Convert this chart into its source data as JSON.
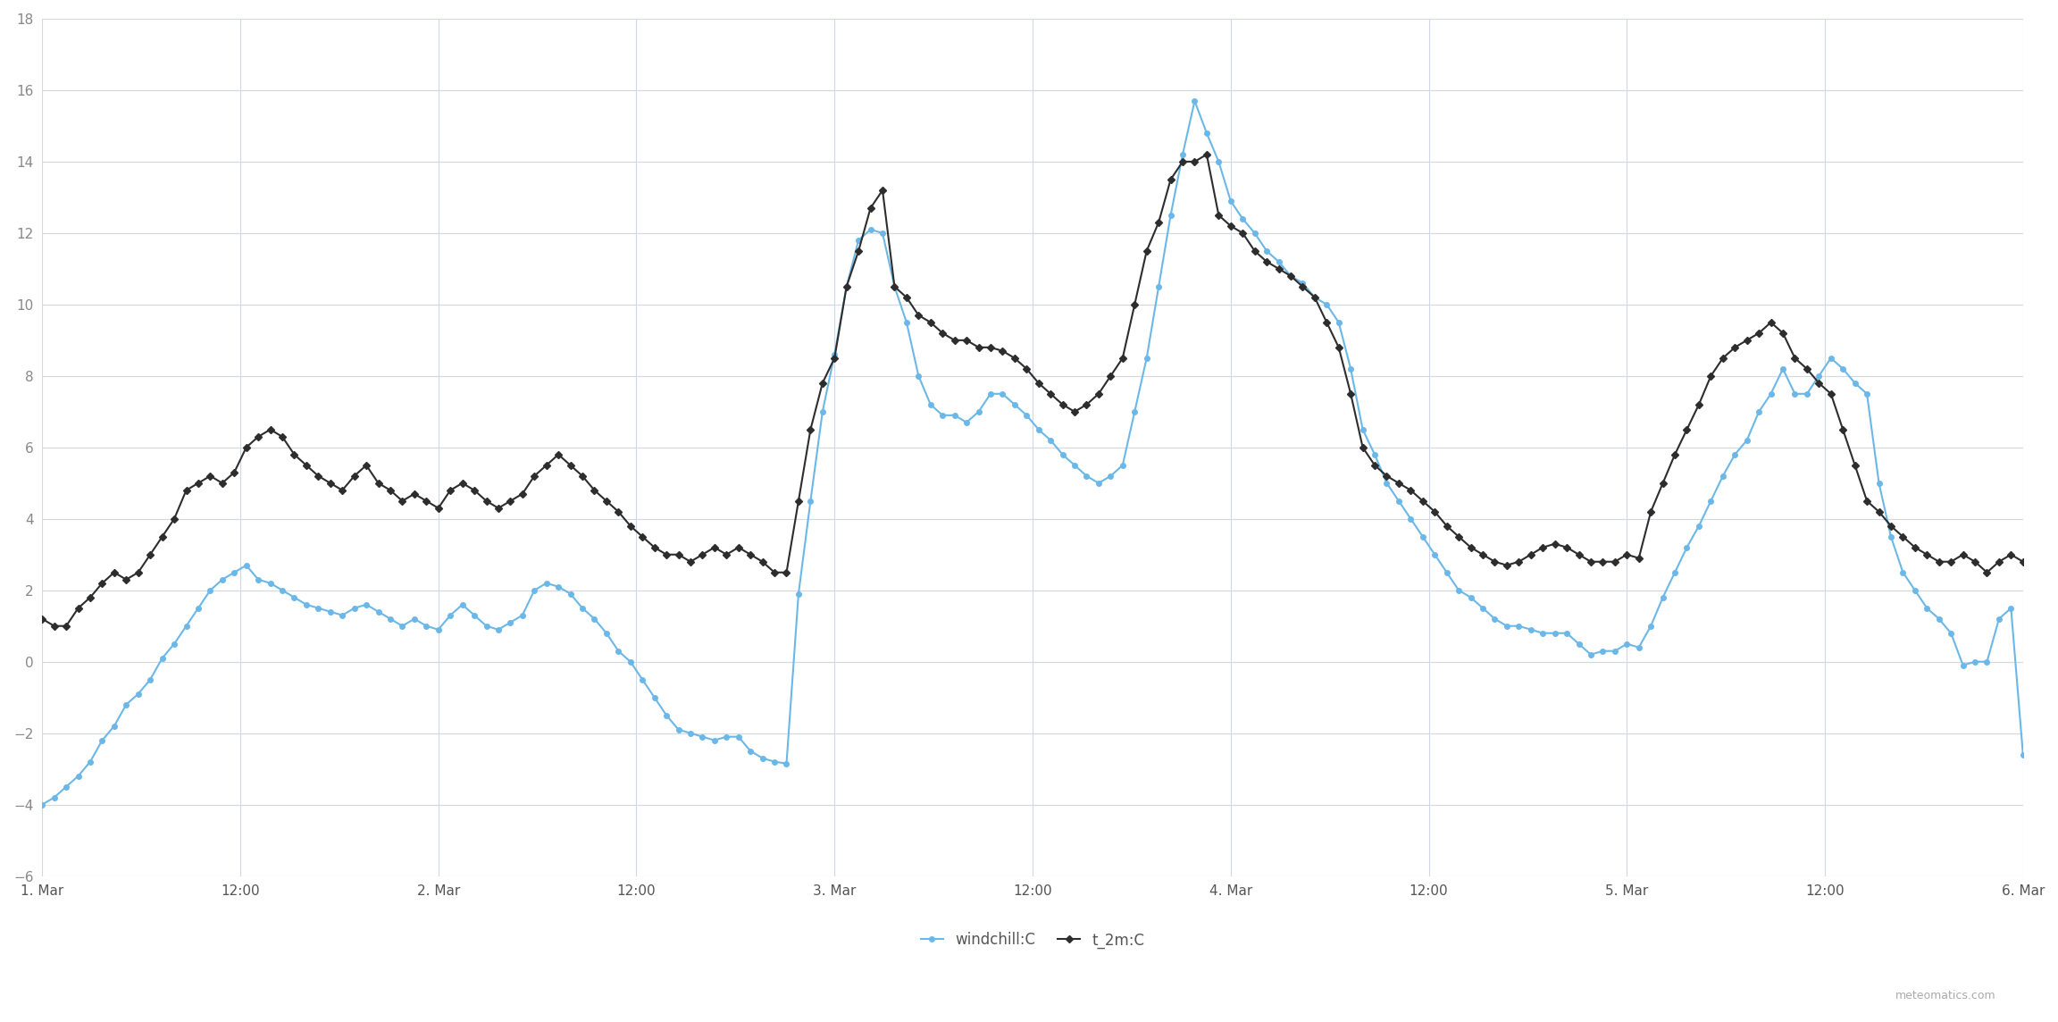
{
  "title": "",
  "background_color": "#ffffff",
  "grid_color": "#d0d8e8",
  "ylim": [
    -6,
    18
  ],
  "yticks": [
    -6,
    -4,
    -2,
    0,
    2,
    4,
    6,
    8,
    10,
    12,
    14,
    16,
    18
  ],
  "xlabel_ticks": [
    "1. Mar",
    "12:00",
    "2. Mar",
    "12:00",
    "3. Mar",
    "12:00",
    "4. Mar",
    "12:00",
    "5. Mar",
    "12:00",
    "6. Mar"
  ],
  "watermark": "meteomatics.com",
  "windchill_color": "#6bb8e8",
  "t2m_color": "#2d2d2d",
  "windchill_label": "windchill:C",
  "t2m_label": "t_2m:C",
  "windchill_data": [
    -4.0,
    -3.8,
    -3.5,
    -3.2,
    -2.8,
    -2.2,
    -1.8,
    -1.2,
    -0.9,
    -0.5,
    0.1,
    0.5,
    1.0,
    1.5,
    2.0,
    2.3,
    2.5,
    2.7,
    2.3,
    2.2,
    2.0,
    1.8,
    1.6,
    1.5,
    1.4,
    1.3,
    1.5,
    1.6,
    1.4,
    1.2,
    1.0,
    1.2,
    1.0,
    0.9,
    1.3,
    1.6,
    1.3,
    1.0,
    0.9,
    1.1,
    1.3,
    2.0,
    2.2,
    2.1,
    1.9,
    1.5,
    1.2,
    0.8,
    0.3,
    0.0,
    -0.5,
    -1.0,
    -1.5,
    -1.9,
    -2.0,
    -2.1,
    -2.2,
    -2.1,
    -2.1,
    -2.5,
    -2.7,
    -2.8,
    -2.85,
    1.9,
    4.5,
    7.0,
    8.6,
    10.5,
    11.8,
    12.1,
    12.0,
    10.5,
    9.5,
    8.0,
    7.2,
    6.9,
    6.9,
    6.7,
    7.0,
    7.5,
    7.5,
    7.2,
    6.9,
    6.5,
    6.2,
    5.8,
    5.5,
    5.2,
    5.0,
    5.2,
    5.5,
    7.0,
    8.5,
    10.5,
    12.5,
    14.2,
    15.7,
    14.8,
    14.0,
    12.9,
    12.4,
    12.0,
    11.5,
    11.2,
    10.8,
    10.6,
    10.2,
    10.0,
    9.5,
    8.2,
    6.5,
    5.8,
    5.0,
    4.5,
    4.0,
    3.5,
    3.0,
    2.5,
    2.0,
    1.8,
    1.5,
    1.2,
    1.0,
    1.0,
    0.9,
    0.8,
    0.8,
    0.8,
    0.5,
    0.2,
    0.3,
    0.3,
    0.5,
    0.4,
    1.0,
    1.8,
    2.5,
    3.2,
    3.8,
    4.5,
    5.2,
    5.8,
    6.2,
    7.0,
    7.5,
    8.2,
    7.5,
    7.5,
    8.0,
    8.5,
    8.2,
    7.8,
    7.5,
    5.0,
    3.5,
    2.5,
    2.0,
    1.5,
    1.2,
    0.8,
    -0.1,
    0.0,
    0.0,
    1.2,
    1.5,
    -2.6
  ],
  "t2m_data": [
    1.2,
    1.0,
    1.0,
    1.5,
    1.8,
    2.2,
    2.5,
    2.3,
    2.5,
    3.0,
    3.5,
    4.0,
    4.8,
    5.0,
    5.2,
    5.0,
    5.3,
    6.0,
    6.3,
    6.5,
    6.3,
    5.8,
    5.5,
    5.2,
    5.0,
    4.8,
    5.2,
    5.5,
    5.0,
    4.8,
    4.5,
    4.7,
    4.5,
    4.3,
    4.8,
    5.0,
    4.8,
    4.5,
    4.3,
    4.5,
    4.7,
    5.2,
    5.5,
    5.8,
    5.5,
    5.2,
    4.8,
    4.5,
    4.2,
    3.8,
    3.5,
    3.2,
    3.0,
    3.0,
    2.8,
    3.0,
    3.2,
    3.0,
    3.2,
    3.0,
    2.8,
    2.5,
    2.5,
    4.5,
    6.5,
    7.8,
    8.5,
    10.5,
    11.5,
    12.7,
    13.2,
    10.5,
    10.2,
    9.7,
    9.5,
    9.2,
    9.0,
    9.0,
    8.8,
    8.8,
    8.7,
    8.5,
    8.2,
    7.8,
    7.5,
    7.2,
    7.0,
    7.2,
    7.5,
    8.0,
    8.5,
    10.0,
    11.5,
    12.3,
    13.5,
    14.0,
    14.0,
    14.2,
    12.5,
    12.2,
    12.0,
    11.5,
    11.2,
    11.0,
    10.8,
    10.5,
    10.2,
    9.5,
    8.8,
    7.5,
    6.0,
    5.5,
    5.2,
    5.0,
    4.8,
    4.5,
    4.2,
    3.8,
    3.5,
    3.2,
    3.0,
    2.8,
    2.7,
    2.8,
    3.0,
    3.2,
    3.3,
    3.2,
    3.0,
    2.8,
    2.8,
    2.8,
    3.0,
    2.9,
    4.2,
    5.0,
    5.8,
    6.5,
    7.2,
    8.0,
    8.5,
    8.8,
    9.0,
    9.2,
    9.5,
    9.2,
    8.5,
    8.2,
    7.8,
    7.5,
    6.5,
    5.5,
    4.5,
    4.2,
    3.8,
    3.5,
    3.2,
    3.0,
    2.8,
    2.8,
    3.0,
    2.8,
    2.5,
    2.8,
    3.0,
    2.8
  ]
}
